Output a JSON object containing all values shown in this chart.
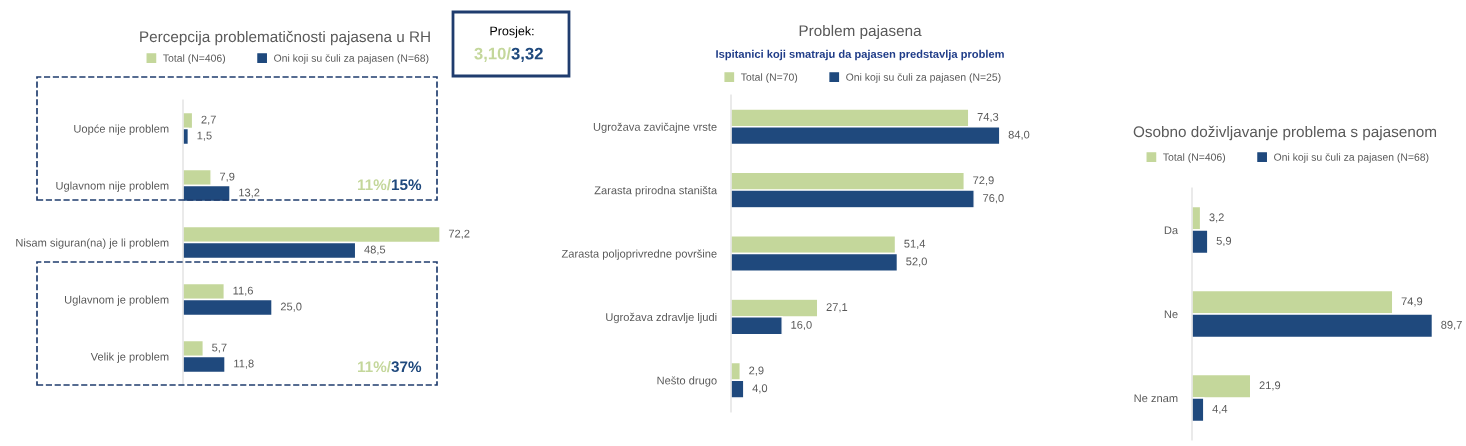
{
  "chart_data": [
    {
      "type": "bar",
      "orientation": "horizontal",
      "title": "Percepcija problematičnosti pajasena u RH",
      "legend": "top",
      "categories": [
        "Uopće nije problem",
        "Uglavnom nije problem",
        "Nisam siguran(na) je li problem",
        "Uglavnom je problem",
        "Velik je problem"
      ],
      "series": [
        {
          "name": "Total (N=406)",
          "color": "#c4d79b",
          "values": [
            2.7,
            7.9,
            72.2,
            11.6,
            5.7
          ],
          "value_labels": [
            "2,7",
            "7,9",
            "72,2",
            "11,6",
            "5,7"
          ]
        },
        {
          "name": "Oni koji su čuli za pajasen (N=68)",
          "color": "#1f497d",
          "values": [
            1.5,
            13.2,
            48.5,
            25.0,
            11.8
          ],
          "value_labels": [
            "1,5",
            "13,2",
            "48,5",
            "25,0",
            "11,8"
          ]
        }
      ],
      "annotations": [
        "Prosjek:",
        "3,10/",
        "3,32",
        "11%/",
        "15%",
        "11%/",
        "37%"
      ]
    },
    {
      "type": "bar",
      "orientation": "horizontal",
      "title": "Problem pajasena",
      "subtitle": "Ispitanici koji smatraju da pajasen predstavlja problem",
      "legend": "top",
      "categories": [
        "Ugrožava zavičajne vrste",
        "Zarasta prirodna staništa",
        "Zarasta poljoprivredne površine",
        "Ugrožava zdravlje ljudi",
        "Nešto drugo"
      ],
      "series": [
        {
          "name": "Total (N=70)",
          "color": "#c4d79b",
          "values": [
            74.3,
            72.9,
            51.4,
            27.1,
            2.9
          ],
          "value_labels": [
            "74,3",
            "72,9",
            "51,4",
            "27,1",
            "2,9"
          ]
        },
        {
          "name": "Oni koji su čuli za pajasen (N=25)",
          "color": "#1f497d",
          "values": [
            84.0,
            76.0,
            52.0,
            16.0,
            4.0
          ],
          "value_labels": [
            "84,0",
            "76,0",
            "52,0",
            "16,0",
            "4,0"
          ]
        }
      ]
    },
    {
      "type": "bar",
      "orientation": "horizontal",
      "title": "Osobno doživljavanje problema s pajasenom",
      "legend": "top",
      "categories": [
        "Da",
        "Ne",
        "Ne znam"
      ],
      "series": [
        {
          "name": "Total (N=406)",
          "color": "#c4d79b",
          "values": [
            3.2,
            74.9,
            21.9
          ],
          "value_labels": [
            "3,2",
            "74,9",
            "21,9"
          ]
        },
        {
          "name": "Oni koji su čuli za pajasen (N=68)",
          "color": "#1f497d",
          "values": [
            5.9,
            89.7,
            4.4
          ],
          "value_labels": [
            "5,9",
            "89,7",
            "4,4"
          ]
        }
      ]
    }
  ]
}
